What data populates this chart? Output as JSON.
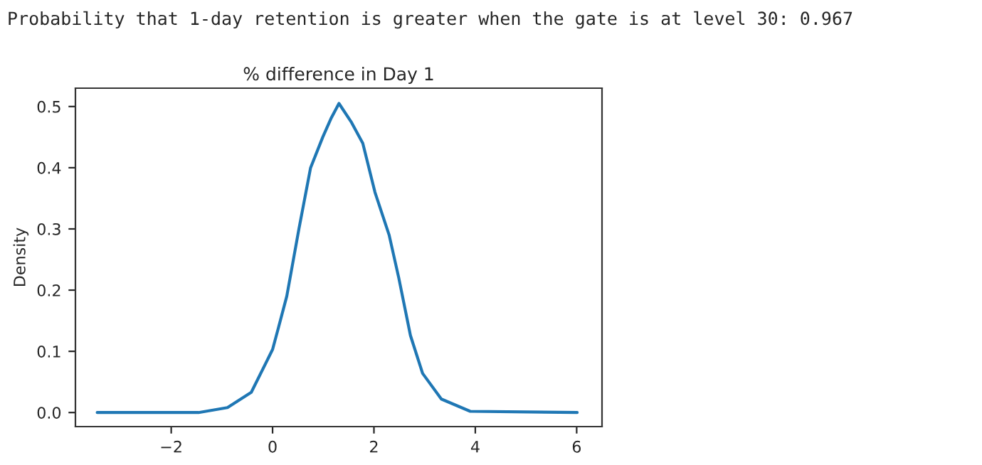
{
  "chart_data": {
    "type": "line",
    "title": "% difference in Day 1",
    "ylabel": "Density",
    "annotations": [
      "Probability that 1-day retention is greater when the gate is at level 30: 0.967"
    ],
    "x": [
      -3.46,
      -1.46,
      -0.89,
      -0.42,
      0,
      0.12,
      0.28,
      0.52,
      0.75,
      0.99,
      1.15,
      1.31,
      1.55,
      1.78,
      2.02,
      2.3,
      2.49,
      2.72,
      2.96,
      3.33,
      3.9,
      6.01
    ],
    "series": [
      {
        "color": "#1f77b4",
        "values": [
          0,
          0,
          0.008,
          0.033,
          0.103,
          0.14,
          0.19,
          0.3,
          0.4,
          0.45,
          0.48,
          0.505,
          0.475,
          0.44,
          0.36,
          0.29,
          0.22,
          0.126,
          0.064,
          0.022,
          0.002,
          0
        ]
      }
    ],
    "xlim": [
      -3.89,
      6.5
    ],
    "xticks": [
      {
        "value": -2,
        "label": "−2"
      },
      0,
      2,
      4,
      6
    ],
    "ylim": [
      -0.023,
      0.53
    ],
    "yticks": [
      {
        "value": 0,
        "label": "0.0"
      },
      0.1,
      0.2,
      0.3,
      0.4,
      0.5
    ],
    "grid": false,
    "legend": false,
    "line_style": "solid",
    "marker": "none"
  }
}
